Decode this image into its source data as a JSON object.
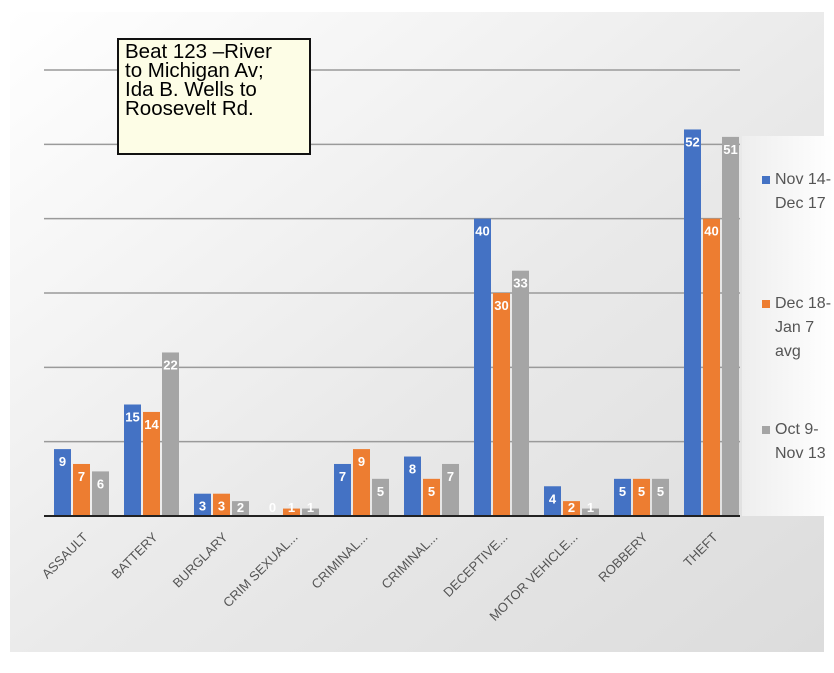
{
  "annotation": "Beat 123 –River\nto Michigan Av;\nIda B. Wells to\nRoosevelt Rd.",
  "chart_data": {
    "type": "bar",
    "categories": [
      "ASSAULT",
      "BATTERY",
      "BURGLARY",
      "CRIM SEXUAL...",
      "CRIMINAL...",
      "CRIMINAL...",
      "DECEPTIVE...",
      "MOTOR VEHICLE...",
      "ROBBERY",
      "THEFT"
    ],
    "series": [
      {
        "name": "Nov 14-\nDec 17",
        "color": "#4472c4",
        "values": [
          9,
          15,
          3,
          0,
          7,
          8,
          40,
          4,
          5,
          52
        ]
      },
      {
        "name": "Dec 18-\nJan 7\navg",
        "color": "#ed7d31",
        "values": [
          7,
          14,
          3,
          1,
          9,
          5,
          30,
          2,
          5,
          40
        ]
      },
      {
        "name": "Oct 9-\nNov 13",
        "color": "#a5a5a5",
        "values": [
          6,
          22,
          2,
          1,
          5,
          7,
          33,
          1,
          5,
          51
        ]
      }
    ],
    "ylim": [
      0,
      60
    ],
    "grid": true,
    "legend": "right",
    "xlabel": "",
    "ylabel": "",
    "title": ""
  }
}
